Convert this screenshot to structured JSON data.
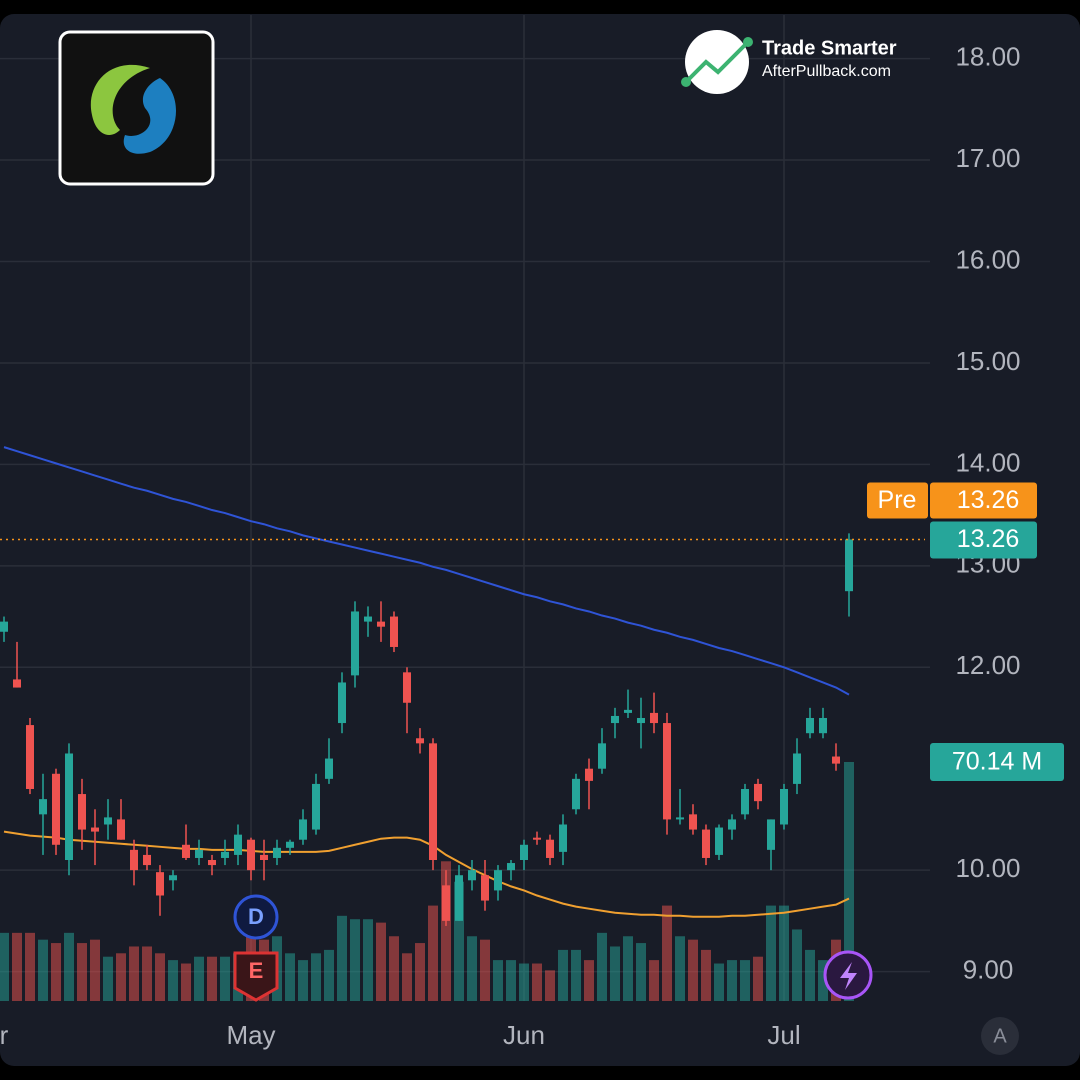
{
  "chart_data": {
    "type": "candlestick",
    "ylim": [
      8.71,
      18.43
    ],
    "yticks": [
      {
        "value": 9,
        "label": "9.00"
      },
      {
        "value": 10,
        "label": "10.00"
      },
      {
        "value": 12,
        "label": "12.00"
      },
      {
        "value": 13,
        "label": "13.00"
      },
      {
        "value": 14,
        "label": "14.00"
      },
      {
        "value": 15,
        "label": "15.00"
      },
      {
        "value": 16,
        "label": "16.00"
      },
      {
        "value": 17,
        "label": "17.00"
      },
      {
        "value": 18,
        "label": "18.00"
      }
    ],
    "xticks": [
      {
        "value": 0,
        "label": "r"
      },
      {
        "value": 19,
        "label": "May"
      },
      {
        "value": 40,
        "label": "Jun"
      },
      {
        "value": 60,
        "label": "Jul"
      }
    ],
    "grid": true,
    "up_color": "#26a69a",
    "down_color": "#ef5350",
    "open": [
      12.35,
      11.88,
      11.43,
      10.55,
      10.95,
      10.1,
      10.75,
      10.42,
      10.45,
      10.5,
      10.2,
      10.15,
      9.98,
      9.9,
      10.25,
      10.12,
      10.1,
      10.12,
      10.15,
      10.3,
      10.15,
      10.12,
      10.22,
      10.3,
      10.4,
      10.9,
      11.45,
      11.92,
      12.45,
      12.45,
      12.5,
      11.95,
      11.3,
      11.25,
      9.85,
      9.5,
      9.9,
      9.95,
      9.8,
      10.0,
      10.1,
      10.32,
      10.3,
      10.18,
      10.6,
      11.0,
      11.0,
      11.45,
      11.55,
      11.45,
      11.55,
      11.45,
      10.5,
      10.55,
      10.4,
      10.15,
      10.4,
      10.55,
      10.85,
      10.2,
      10.45,
      10.85,
      11.35,
      11.35,
      11.12,
      12.75
    ],
    "high": [
      12.5,
      12.25,
      11.5,
      10.95,
      11.0,
      11.25,
      10.9,
      10.6,
      10.7,
      10.7,
      10.3,
      10.25,
      10.05,
      10.0,
      10.45,
      10.3,
      10.15,
      10.3,
      10.45,
      10.32,
      10.3,
      10.3,
      10.3,
      10.6,
      10.95,
      11.3,
      11.95,
      12.65,
      12.6,
      12.65,
      12.55,
      12.0,
      11.4,
      11.3,
      10.0,
      10.05,
      10.1,
      10.1,
      10.05,
      10.1,
      10.3,
      10.38,
      10.35,
      10.55,
      10.95,
      11.1,
      11.4,
      11.6,
      11.78,
      11.7,
      11.75,
      11.55,
      10.8,
      10.65,
      10.45,
      10.45,
      10.55,
      10.85,
      10.9,
      10.5,
      10.85,
      11.3,
      11.6,
      11.6,
      11.25,
      13.32
    ],
    "low": [
      12.25,
      11.8,
      10.75,
      10.15,
      10.15,
      9.95,
      10.2,
      10.05,
      10.3,
      10.3,
      9.85,
      10.0,
      9.55,
      9.8,
      10.1,
      10.05,
      9.95,
      10.05,
      10.05,
      9.9,
      9.9,
      10.05,
      10.15,
      10.25,
      10.35,
      10.85,
      11.35,
      11.8,
      12.3,
      12.25,
      12.15,
      11.35,
      11.15,
      10.0,
      9.45,
      9.5,
      9.8,
      9.6,
      9.7,
      9.9,
      10.0,
      10.25,
      10.05,
      10.05,
      10.55,
      10.6,
      10.95,
      11.3,
      11.5,
      11.2,
      11.35,
      10.35,
      10.45,
      10.35,
      10.05,
      10.1,
      10.3,
      10.5,
      10.6,
      10.0,
      10.4,
      10.75,
      11.3,
      11.3,
      10.98,
      12.5
    ],
    "close": [
      12.45,
      11.8,
      10.8,
      10.7,
      10.25,
      11.15,
      10.4,
      10.38,
      10.52,
      10.3,
      10.0,
      10.05,
      9.75,
      9.95,
      10.12,
      10.2,
      10.05,
      10.18,
      10.35,
      10.0,
      10.1,
      10.22,
      10.28,
      10.5,
      10.85,
      11.1,
      11.85,
      12.55,
      12.5,
      12.4,
      12.2,
      11.65,
      11.25,
      10.1,
      9.5,
      9.95,
      10.0,
      9.7,
      10.0,
      10.07,
      10.25,
      10.3,
      10.12,
      10.45,
      10.9,
      10.88,
      11.25,
      11.52,
      11.58,
      11.5,
      11.45,
      10.5,
      10.52,
      10.4,
      10.12,
      10.42,
      10.5,
      10.8,
      10.68,
      10.5,
      10.8,
      11.15,
      11.5,
      11.5,
      11.05,
      13.26
    ],
    "volume": {
      "values": [
        20,
        20,
        20,
        18,
        17,
        20,
        17,
        18,
        13,
        14,
        16,
        16,
        14,
        12,
        11,
        13,
        13,
        13,
        14,
        20,
        18,
        19,
        14,
        12,
        14,
        15,
        25,
        24,
        24,
        23,
        19,
        14,
        17,
        28,
        41,
        35,
        19,
        18,
        12,
        12,
        11,
        11,
        9,
        15,
        15,
        12,
        20,
        16,
        19,
        17,
        12,
        28,
        19,
        18,
        15,
        11,
        12,
        12,
        13,
        28,
        28,
        21,
        15,
        12,
        18,
        70.14
      ],
      "last_label": "70.14 M"
    },
    "lines": [
      {
        "color": "#2f54d6",
        "values": [
          14.17,
          14.13,
          14.09,
          14.05,
          14.01,
          13.97,
          13.93,
          13.89,
          13.85,
          13.81,
          13.77,
          13.74,
          13.7,
          13.66,
          13.63,
          13.59,
          13.55,
          13.52,
          13.48,
          13.44,
          13.41,
          13.37,
          13.34,
          13.3,
          13.27,
          13.24,
          13.21,
          13.18,
          13.15,
          13.12,
          13.09,
          13.06,
          13.03,
          12.99,
          12.96,
          12.92,
          12.88,
          12.84,
          12.8,
          12.76,
          12.72,
          12.69,
          12.65,
          12.62,
          12.58,
          12.55,
          12.51,
          12.48,
          12.44,
          12.41,
          12.37,
          12.34,
          12.3,
          12.27,
          12.23,
          12.19,
          12.16,
          12.12,
          12.08,
          12.04,
          12.0,
          11.95,
          11.9,
          11.85,
          11.8,
          11.73
        ]
      },
      {
        "color": "#f0a030",
        "values": [
          10.38,
          10.36,
          10.34,
          10.33,
          10.32,
          10.3,
          10.29,
          10.28,
          10.27,
          10.26,
          10.25,
          10.24,
          10.23,
          10.22,
          10.21,
          10.21,
          10.2,
          10.2,
          10.2,
          10.19,
          10.18,
          10.18,
          10.18,
          10.18,
          10.18,
          10.19,
          10.22,
          10.25,
          10.28,
          10.31,
          10.32,
          10.32,
          10.3,
          10.24,
          10.15,
          10.08,
          10.01,
          9.95,
          9.89,
          9.84,
          9.8,
          9.75,
          9.71,
          9.67,
          9.64,
          9.62,
          9.6,
          9.58,
          9.57,
          9.56,
          9.56,
          9.55,
          9.55,
          9.54,
          9.54,
          9.54,
          9.55,
          9.55,
          9.56,
          9.57,
          9.58,
          9.6,
          9.62,
          9.64,
          9.66,
          9.72
        ]
      }
    ],
    "pre": {
      "tag": "Pre",
      "price": 13.26,
      "color": "#f7931a"
    },
    "markers": {
      "dividend": "D",
      "earnings": "E"
    },
    "auto_scale": "A"
  },
  "branding": {
    "headline": "Trade Smarter",
    "site": "AfterPullback.com"
  }
}
